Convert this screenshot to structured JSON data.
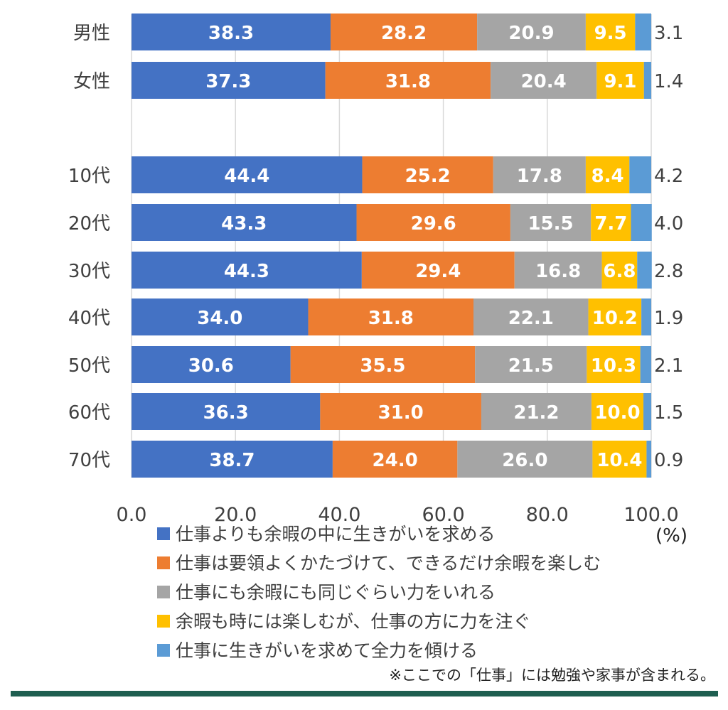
{
  "chart_data": {
    "type": "bar",
    "orientation": "horizontal",
    "stacked": true,
    "categories": [
      "男性",
      "女性",
      "",
      "10代",
      "20代",
      "30代",
      "40代",
      "50代",
      "60代",
      "70代"
    ],
    "series": [
      {
        "name": "仕事よりも余暇の中に生きがいを求める",
        "color": "#4472C4",
        "values": [
          38.3,
          37.3,
          null,
          44.4,
          43.3,
          44.3,
          34.0,
          30.6,
          36.3,
          38.7
        ],
        "labels": [
          "38.3",
          "37.3",
          "",
          "44.4",
          "43.3",
          "44.3",
          "34.0",
          "30.6",
          "36.3",
          "38.7"
        ]
      },
      {
        "name": "仕事は要領よくかたづけて、できるだけ余暇を楽しむ",
        "color": "#ED7D31",
        "values": [
          28.2,
          31.8,
          null,
          25.2,
          29.6,
          29.4,
          31.8,
          35.5,
          31.0,
          24.0
        ],
        "labels": [
          "28.2",
          "31.8",
          "",
          "25.2",
          "29.6",
          "29.4",
          "31.8",
          "35.5",
          "31.0",
          "24.0"
        ]
      },
      {
        "name": "仕事にも余暇にも同じぐらい力をいれる",
        "color": "#A5A5A5",
        "values": [
          20.9,
          20.4,
          null,
          17.8,
          15.5,
          16.8,
          22.1,
          21.5,
          21.2,
          26.0
        ],
        "labels": [
          "20.9",
          "20.4",
          "",
          "17.8",
          "15.5",
          "16.8",
          "22.1",
          "21.5",
          "21.2",
          "26.0"
        ]
      },
      {
        "name": "余暇も時には楽しむが、仕事の方に力を注ぐ",
        "color": "#FFC000",
        "values": [
          9.5,
          9.1,
          null,
          8.4,
          7.7,
          6.8,
          10.2,
          10.3,
          10.0,
          10.4
        ],
        "labels": [
          "9.5",
          "9.1",
          "",
          "8.4",
          "7.7",
          "6.8",
          "10.2",
          "10.3",
          "10.0",
          "10.4"
        ]
      },
      {
        "name": "仕事に生きがいを求めて全力を傾ける",
        "color": "#5B9BD5",
        "values": [
          3.1,
          1.4,
          null,
          4.2,
          4.0,
          2.8,
          1.9,
          2.1,
          1.5,
          0.9
        ],
        "labels": [
          "3.1",
          "1.4",
          "",
          "4.2",
          "4.0",
          "2.8",
          "1.9",
          "2.1",
          "1.5",
          "0.9"
        ]
      }
    ],
    "xlim": [
      0,
      100
    ],
    "xticks": [
      "0.0",
      "20.0",
      "40.0",
      "60.0",
      "80.0",
      "100.0"
    ],
    "unit": "(%)",
    "grid": true,
    "legend_position": "bottom",
    "note": "※ここでの「仕事」には勉強や家事が含まれる。"
  },
  "colors": {
    "grid": "#D9D9D9",
    "footer_bar": "#1E5E50"
  }
}
